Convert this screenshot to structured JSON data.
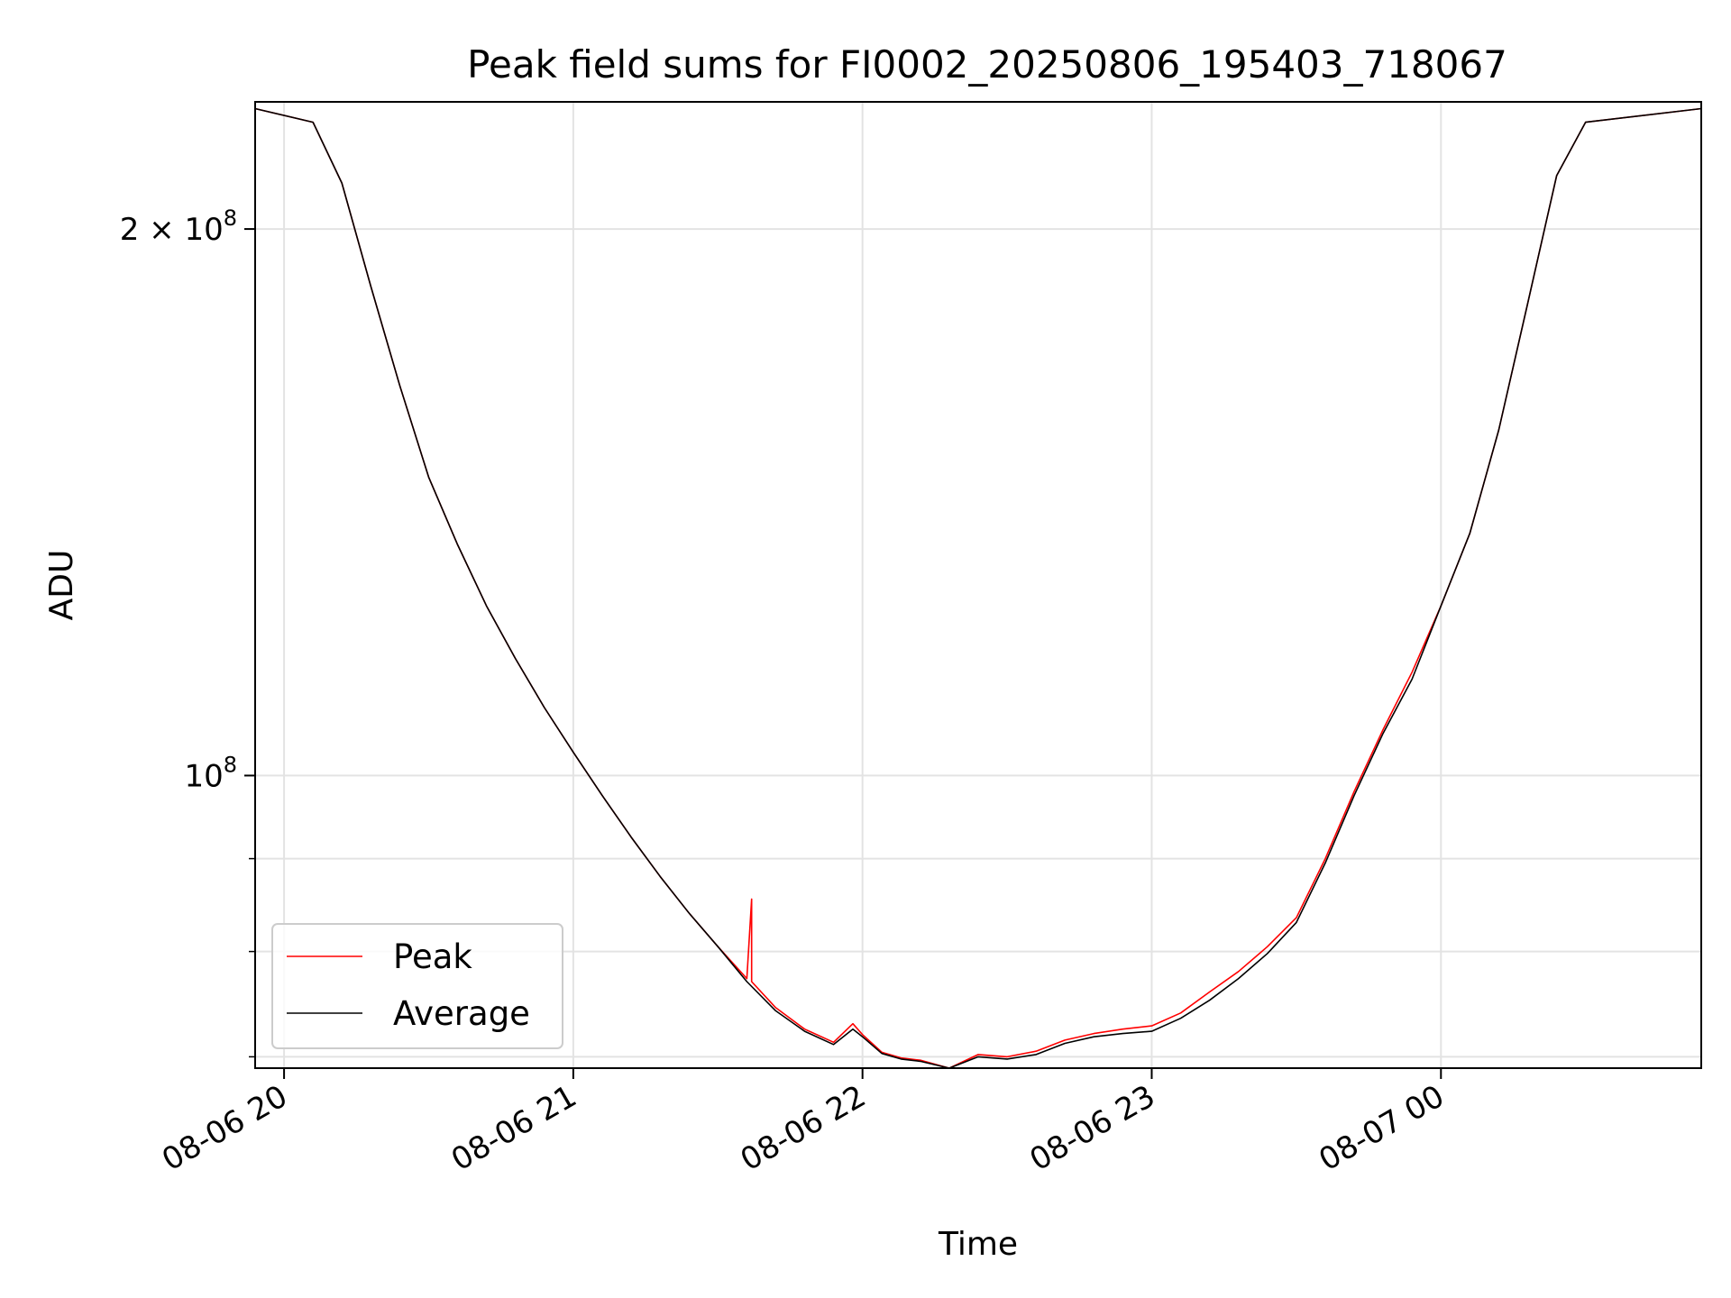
{
  "chart_data": {
    "type": "line",
    "title": "Peak field sums for FI0002_20250806_195403_718067",
    "xlabel": "Time",
    "ylabel": "ADU",
    "y_scale": "log",
    "xlim": [
      "2025-08-06 19:54",
      "2025-08-07 00:54"
    ],
    "ylim": [
      69000000,
      235000000
    ],
    "x_ticks": [
      {
        "value": "2025-08-06 20:00",
        "label": "08-06 20"
      },
      {
        "value": "2025-08-06 21:00",
        "label": "08-06 21"
      },
      {
        "value": "2025-08-06 22:00",
        "label": "08-06 22"
      },
      {
        "value": "2025-08-06 23:00",
        "label": "08-06 23"
      },
      {
        "value": "2025-08-07 00:00",
        "label": "08-07 00"
      }
    ],
    "y_ticks": [
      {
        "value": 100000000,
        "mantissa": "",
        "base": "10",
        "exp": "8"
      },
      {
        "value": 200000000,
        "mantissa": "2 × ",
        "base": "10",
        "exp": "8"
      }
    ],
    "y_minor_ticks": [
      70000000,
      80000000,
      90000000
    ],
    "grid": true,
    "legend_position": "lower-left",
    "series": [
      {
        "name": "Peak",
        "color": "#ff0000",
        "x": [
          "2025-08-06 19:54",
          "2025-08-06 20:06",
          "2025-08-06 20:12",
          "2025-08-06 20:18",
          "2025-08-06 20:24",
          "2025-08-06 20:30",
          "2025-08-06 20:36",
          "2025-08-06 20:42",
          "2025-08-06 20:48",
          "2025-08-06 20:54",
          "2025-08-06 21:00",
          "2025-08-06 21:06",
          "2025-08-06 21:12",
          "2025-08-06 21:18",
          "2025-08-06 21:24",
          "2025-08-06 21:30",
          "2025-08-06 21:36",
          "2025-08-06 21:37",
          "2025-08-06 21:37",
          "2025-08-06 21:42",
          "2025-08-06 21:48",
          "2025-08-06 21:54",
          "2025-08-06 21:58",
          "2025-08-06 22:00",
          "2025-08-06 22:04",
          "2025-08-06 22:08",
          "2025-08-06 22:12",
          "2025-08-06 22:18",
          "2025-08-06 22:24",
          "2025-08-06 22:30",
          "2025-08-06 22:36",
          "2025-08-06 22:42",
          "2025-08-06 22:48",
          "2025-08-06 22:54",
          "2025-08-06 23:00",
          "2025-08-06 23:06",
          "2025-08-06 23:12",
          "2025-08-06 23:18",
          "2025-08-06 23:24",
          "2025-08-06 23:30",
          "2025-08-06 23:36",
          "2025-08-06 23:42",
          "2025-08-06 23:48",
          "2025-08-06 23:54",
          "2025-08-07 00:00",
          "2025-08-07 00:06",
          "2025-08-07 00:12",
          "2025-08-07 00:18",
          "2025-08-07 00:24",
          "2025-08-07 00:30",
          "2025-08-07 00:54"
        ],
        "y": [
          233000000,
          229000000,
          212000000,
          186000000,
          164000000,
          146000000,
          134000000,
          124000000,
          116000000,
          109000000,
          103000000,
          97500000,
          92500000,
          88000000,
          84000000,
          80500000,
          77300000,
          85500000,
          77000000,
          74500000,
          72500000,
          71300000,
          73000000,
          72000000,
          70400000,
          69900000,
          69700000,
          69000000,
          70200000,
          70000000,
          70500000,
          71500000,
          72100000,
          72500000,
          72800000,
          74000000,
          76000000,
          78000000,
          80500000,
          83500000,
          90000000,
          98000000,
          106000000,
          114000000,
          124000000,
          136000000,
          155000000,
          182000000,
          214000000,
          229000000,
          233000000
        ]
      },
      {
        "name": "Average",
        "color": "#000000",
        "x": [
          "2025-08-06 19:54",
          "2025-08-06 20:06",
          "2025-08-06 20:12",
          "2025-08-06 20:18",
          "2025-08-06 20:24",
          "2025-08-06 20:30",
          "2025-08-06 20:36",
          "2025-08-06 20:42",
          "2025-08-06 20:48",
          "2025-08-06 20:54",
          "2025-08-06 21:00",
          "2025-08-06 21:06",
          "2025-08-06 21:12",
          "2025-08-06 21:18",
          "2025-08-06 21:24",
          "2025-08-06 21:30",
          "2025-08-06 21:36",
          "2025-08-06 21:42",
          "2025-08-06 21:48",
          "2025-08-06 21:54",
          "2025-08-06 21:58",
          "2025-08-06 22:00",
          "2025-08-06 22:04",
          "2025-08-06 22:08",
          "2025-08-06 22:12",
          "2025-08-06 22:18",
          "2025-08-06 22:24",
          "2025-08-06 22:30",
          "2025-08-06 22:36",
          "2025-08-06 22:42",
          "2025-08-06 22:48",
          "2025-08-06 22:54",
          "2025-08-06 23:00",
          "2025-08-06 23:06",
          "2025-08-06 23:12",
          "2025-08-06 23:18",
          "2025-08-06 23:24",
          "2025-08-06 23:30",
          "2025-08-06 23:36",
          "2025-08-06 23:42",
          "2025-08-06 23:48",
          "2025-08-06 23:54",
          "2025-08-07 00:00",
          "2025-08-07 00:06",
          "2025-08-07 00:12",
          "2025-08-07 00:18",
          "2025-08-07 00:24",
          "2025-08-07 00:30",
          "2025-08-07 00:54"
        ],
        "y": [
          233000000,
          229000000,
          212000000,
          186000000,
          164000000,
          146000000,
          134000000,
          124000000,
          116000000,
          109000000,
          103000000,
          97500000,
          92500000,
          88000000,
          84000000,
          80500000,
          77000000,
          74200000,
          72300000,
          71100000,
          72500000,
          71800000,
          70300000,
          69800000,
          69600000,
          69000000,
          70000000,
          69800000,
          70200000,
          71200000,
          71800000,
          72100000,
          72300000,
          73500000,
          75200000,
          77300000,
          79800000,
          83000000,
          89500000,
          97500000,
          105500000,
          113000000,
          124000000,
          136000000,
          155000000,
          182000000,
          214000000,
          229000000,
          233000000
        ]
      }
    ]
  }
}
